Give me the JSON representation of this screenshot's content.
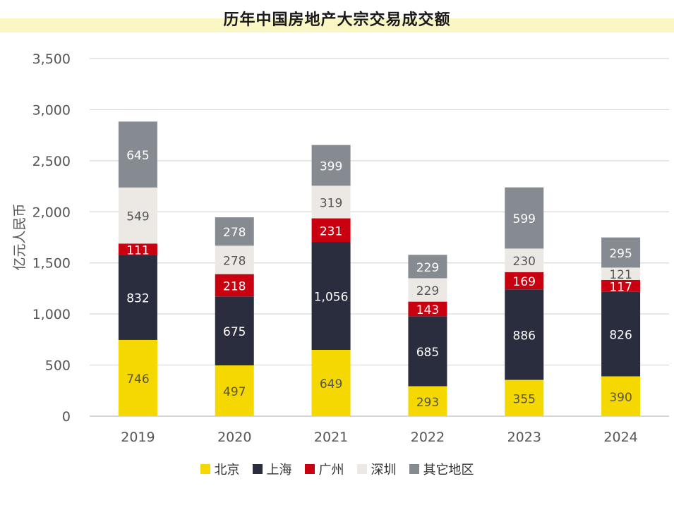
{
  "chart_data": {
    "type": "bar",
    "stacked": true,
    "title": "历年中国房地产大宗交易成交额",
    "ylabel": "亿元人民币",
    "xlabel": "",
    "categories": [
      "2019",
      "2020",
      "2021",
      "2022",
      "2023",
      "2024"
    ],
    "ylim": [
      0,
      3500
    ],
    "yticks": [
      0,
      500,
      1000,
      1500,
      2000,
      2500,
      3000,
      3500
    ],
    "ytick_labels": [
      "0",
      "500",
      "1,000",
      "1,500",
      "2,000",
      "2,500",
      "3,000",
      "3,500"
    ],
    "grid": true,
    "legend_position": "bottom",
    "series": [
      {
        "name": "北京",
        "color": "#f5d800",
        "label_color": "#555555",
        "values": [
          746,
          497,
          649,
          293,
          355,
          390
        ],
        "labels": [
          "746",
          "497",
          "649",
          "293",
          "355",
          "390"
        ]
      },
      {
        "name": "上海",
        "color": "#2a2d3e",
        "label_color": "#ffffff",
        "values": [
          832,
          675,
          1056,
          685,
          886,
          826
        ],
        "labels": [
          "832",
          "675",
          "1,056",
          "685",
          "886",
          "826"
        ]
      },
      {
        "name": "广州",
        "color": "#c8000f",
        "label_color": "#ffffff",
        "values": [
          111,
          218,
          231,
          143,
          169,
          117
        ],
        "labels": [
          "111",
          "218",
          "231",
          "143",
          "169",
          "117"
        ]
      },
      {
        "name": "深圳",
        "color": "#ece9e4",
        "label_color": "#555555",
        "values": [
          549,
          278,
          319,
          229,
          230,
          121
        ],
        "labels": [
          "549",
          "278",
          "319",
          "229",
          "230",
          "121"
        ]
      },
      {
        "name": "其它地区",
        "color": "#868a91",
        "label_color": "#ffffff",
        "values": [
          645,
          278,
          399,
          229,
          599,
          295
        ],
        "labels": [
          "645",
          "278",
          "399",
          "229",
          "599",
          "295"
        ]
      }
    ]
  }
}
